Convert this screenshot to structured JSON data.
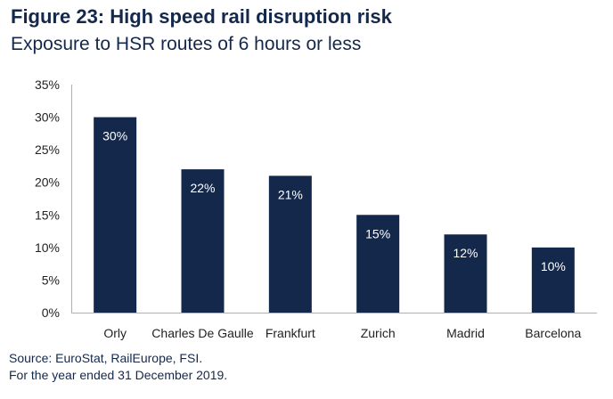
{
  "title": "Figure 23: High speed rail disruption risk",
  "subtitle": "Exposure to HSR routes of 6 hours or less",
  "source_lines": [
    "Source: EuroStat, RailEurope, FSI.",
    "For the year ended 31 December 2019."
  ],
  "colors": {
    "bar": "#14284b",
    "title": "#14284b",
    "axis": "#b0b0b0"
  },
  "chart_data": {
    "type": "bar",
    "categories": [
      "Orly",
      "Charles De Gaulle",
      "Frankfurt",
      "Zurich",
      "Madrid",
      "Barcelona"
    ],
    "values": [
      30,
      22,
      21,
      15,
      12,
      10
    ],
    "data_labels": [
      "30%",
      "22%",
      "21%",
      "15%",
      "12%",
      "10%"
    ],
    "ylim": [
      0,
      35
    ],
    "yticks": [
      0,
      5,
      10,
      15,
      20,
      25,
      30,
      35
    ],
    "ytick_labels": [
      "0%",
      "5%",
      "10%",
      "15%",
      "20%",
      "25%",
      "30%",
      "35%"
    ],
    "xlabel": "",
    "ylabel": "",
    "grid": false,
    "legend": false
  }
}
